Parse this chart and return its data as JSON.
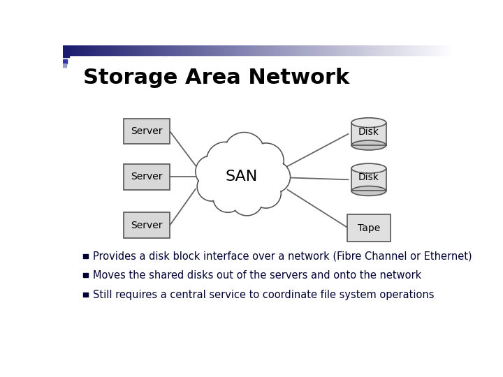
{
  "title": "Storage Area Network",
  "title_fontsize": 22,
  "title_color": "#000000",
  "title_weight": "bold",
  "background_color": "#ffffff",
  "san_label": "SAN",
  "san_fontsize": 16,
  "servers": [
    "Server",
    "Server",
    "Server"
  ],
  "right_labels": [
    "Disk",
    "Disk",
    "Tape"
  ],
  "label_fontsize": 10,
  "bullet_points": [
    "Provides a disk block interface over a network (Fibre Channel or Ethernet)",
    "Moves the shared disks out of the servers and onto the network",
    "Still requires a central service to coordinate file system operations"
  ],
  "bullet_fontsize": 10.5,
  "bullet_color": "#000033",
  "box_fill": "#d8d8d8",
  "box_edge": "#555555",
  "line_color": "#666666",
  "cloud_fill": "#ffffff",
  "cloud_edge": "#555555"
}
